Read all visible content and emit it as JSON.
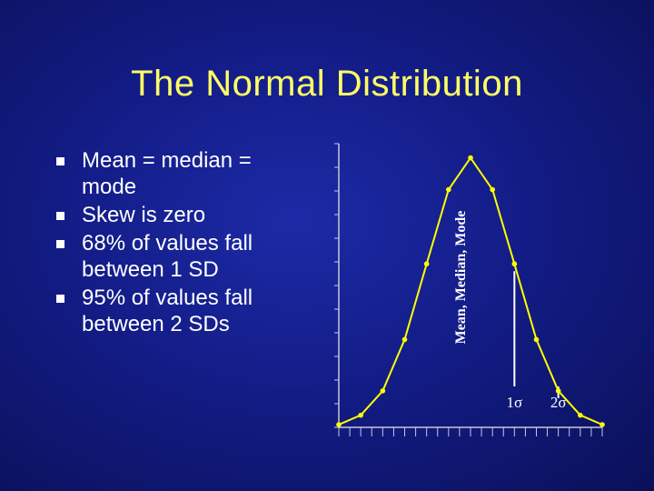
{
  "slide": {
    "title": "The Normal Distribution",
    "bullets": [
      "Mean = median = mode",
      "Skew is zero",
      "68% of values fall between 1 SD",
      "95% of values fall between 2 SDs"
    ]
  },
  "colors": {
    "curve": "#ffff00",
    "axis": "#c8c8d8",
    "marker_line": "#ffffff",
    "title": "#ffff66",
    "text": "#ffffff"
  },
  "chart_data": {
    "type": "line",
    "title": "",
    "xlabel": "",
    "ylabel": "",
    "x": [
      -3.0,
      -2.5,
      -2.0,
      -1.5,
      -1.0,
      -0.5,
      0.0,
      0.5,
      1.0,
      1.5,
      2.0,
      2.5,
      3.0
    ],
    "series": [
      {
        "values": [
          0.004,
          0.018,
          0.054,
          0.13,
          0.242,
          0.352,
          0.399,
          0.352,
          0.242,
          0.13,
          0.054,
          0.018,
          0.004
        ]
      }
    ],
    "xlim": [
      -3.0,
      3.0
    ],
    "ylim": [
      0,
      0.42
    ],
    "grid": false,
    "reference_lines": [
      {
        "x": 0,
        "label": "Mean, Median, Mode"
      },
      {
        "x": 1,
        "label": "1σ"
      },
      {
        "x": 2,
        "label": "2σ"
      }
    ]
  }
}
